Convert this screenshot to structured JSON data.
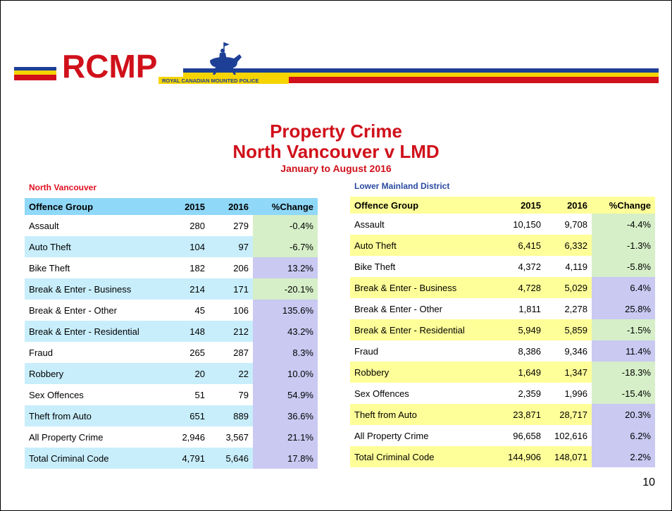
{
  "header": {
    "logo_text": "RCMP",
    "logo_subtitle": "ROYAL CANADIAN MOUNTED POLICE"
  },
  "title": {
    "line1": "Property Crime",
    "line2": "North Vancouver v LMD",
    "subtitle": "January to August 2016"
  },
  "tables": [
    {
      "caption": "North Vancouver",
      "columns": [
        "Offence Group",
        "2015",
        "2016",
        "%Change"
      ],
      "rows": [
        [
          "Assault",
          "280",
          "279",
          "-0.4%"
        ],
        [
          "Auto Theft",
          "104",
          "97",
          "-6.7%"
        ],
        [
          "Bike Theft",
          "182",
          "206",
          "13.2%"
        ],
        [
          "Break & Enter - Business",
          "214",
          "171",
          "-20.1%"
        ],
        [
          "Break & Enter - Other",
          "45",
          "106",
          "135.6%"
        ],
        [
          "Break & Enter - Residential",
          "148",
          "212",
          "43.2%"
        ],
        [
          "Fraud",
          "265",
          "287",
          "8.3%"
        ],
        [
          "Robbery",
          "20",
          "22",
          "10.0%"
        ],
        [
          "Sex Offences",
          "51",
          "79",
          "54.9%"
        ],
        [
          "Theft from Auto",
          "651",
          "889",
          "36.6%"
        ],
        [
          "All Property Crime",
          "2,946",
          "3,567",
          "21.1%"
        ],
        [
          "Total Criminal Code",
          "4,791",
          "5,646",
          "17.8%"
        ]
      ]
    },
    {
      "caption": "Lower Mainland District",
      "columns": [
        "Offence Group",
        "2015",
        "2016",
        "%Change"
      ],
      "rows": [
        [
          "Assault",
          "10,150",
          "9,708",
          "-4.4%"
        ],
        [
          "Auto Theft",
          "6,415",
          "6,332",
          "-1.3%"
        ],
        [
          "Bike Theft",
          "4,372",
          "4,119",
          "-5.8%"
        ],
        [
          "Break & Enter - Business",
          "4,728",
          "5,029",
          "6.4%"
        ],
        [
          "Break & Enter - Other",
          "1,811",
          "2,278",
          "25.8%"
        ],
        [
          "Break & Enter - Residential",
          "5,949",
          "5,859",
          "-1.5%"
        ],
        [
          "Fraud",
          "8,386",
          "9,346",
          "11.4%"
        ],
        [
          "Robbery",
          "1,649",
          "1,347",
          "-18.3%"
        ],
        [
          "Sex Offences",
          "2,359",
          "1,996",
          "-15.4%"
        ],
        [
          "Theft from Auto",
          "23,871",
          "28,717",
          "20.3%"
        ],
        [
          "All Property Crime",
          "96,658",
          "102,616",
          "6.2%"
        ],
        [
          "Total Criminal Code",
          "144,906",
          "148,071",
          "2.2%"
        ]
      ]
    }
  ],
  "page_number": "10"
}
